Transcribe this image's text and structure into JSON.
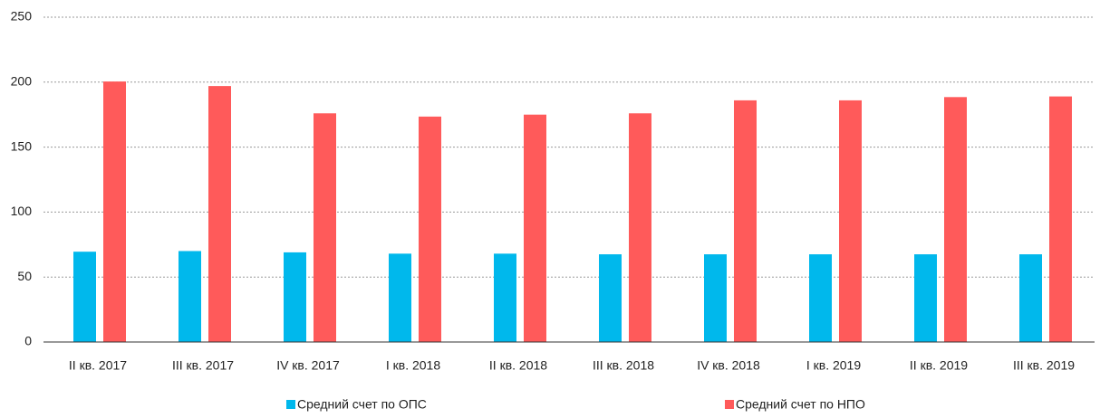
{
  "chart_data": {
    "type": "bar",
    "categories": [
      "II кв. 2017",
      "III кв. 2017",
      "IV кв. 2017",
      "I кв. 2018",
      "II кв. 2018",
      "III кв. 2018",
      "IV кв. 2018",
      "I кв. 2019",
      "II кв. 2019",
      "III кв. 2019"
    ],
    "series": [
      {
        "name": "Средний счет по ОПС",
        "color": "#00b8ec",
        "values": [
          69.5,
          70,
          69,
          68,
          68,
          67.5,
          67.5,
          67.5,
          67.5,
          67.5
        ]
      },
      {
        "name": "Средний счет по НПО",
        "color": "#ff5a5a",
        "values": [
          200.5,
          197,
          176,
          173.5,
          175,
          176,
          186,
          186,
          188.5,
          189
        ]
      }
    ],
    "ylim": [
      0,
      250
    ],
    "yticks": [
      0,
      50,
      100,
      150,
      200,
      250
    ],
    "grid": true
  }
}
